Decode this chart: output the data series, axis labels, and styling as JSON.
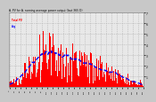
{
  "title": "A. PV for A. running average power output (last 365 D)",
  "legend_pv": "Total PV",
  "legend_avg": "Avg",
  "ylim": [
    0,
    7
  ],
  "yticks": [
    1,
    2,
    3,
    4,
    5,
    6,
    7
  ],
  "ytick_labels": [
    "1",
    "2",
    "3",
    "4",
    "5",
    "6",
    "7"
  ],
  "fig_bg_color": "#c8c8c8",
  "plot_bg_color": "#e8e8e8",
  "bar_color": "#ff0000",
  "avg_color": "#0000ff",
  "grid_color": "#aaaaaa",
  "n_points": 365,
  "peak_day": 120,
  "peak_value": 6.9,
  "avg_level_early": 0.8,
  "avg_level_mid": 2.8,
  "avg_level_late": 1.8,
  "seed": 77
}
